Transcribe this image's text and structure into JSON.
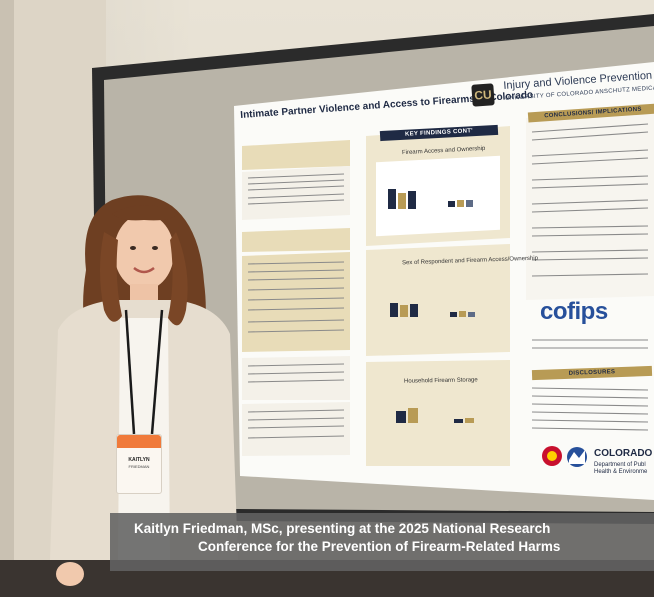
{
  "caption": {
    "line1": "Kaitlyn Friedman, MSc, presenting at the 2025 National Research",
    "line2": "Conference for the Prevention of Firearm-Related Harms"
  },
  "poster": {
    "title": "Intimate Partner Violence and Access to Firearms in Colorado",
    "org_name": "Injury and Violence Prevention",
    "org_sub": "UNIVERSITY OF COLORADO ANSCHUTZ MEDICAL CA",
    "logo_letters": "CU",
    "header_key_findings": "KEY FINDINGS CONT'",
    "header_conclusions": "CONCLUSIONS/ IMPLICATIONS",
    "header_disclosures": "DISCLOSURES",
    "chart1_title": "Firearm Access and Ownership",
    "chart2_title": "Sex of Respondent and Firearm Access/Ownership",
    "chart3_title": "Household Firearm Storage",
    "cofips": "cofips",
    "colorado": "COLORADO",
    "cdph_line1": "Department of Publ",
    "cdph_line2": "Health & Environme"
  },
  "badge": {
    "name": "KAITLYN",
    "sub": "FRIEDMAN"
  },
  "colors": {
    "poster_navy": "#1f2a44",
    "poster_gold": "#b89b55",
    "caption_bg": "#626262",
    "cofips_blue": "#27509b",
    "badge_orange": "#f07a3a"
  }
}
